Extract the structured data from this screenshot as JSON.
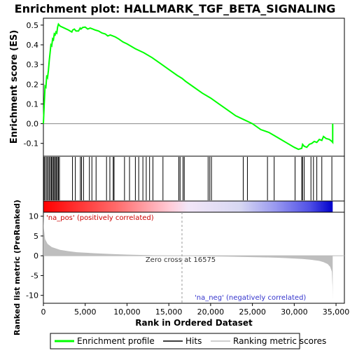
{
  "chart_data": {
    "type": "line",
    "title": "Enrichment plot: HALLMARK_TGF_BETA_SIGNALING",
    "top_panel": {
      "ylabel": "Enrichment score (ES)",
      "ylim": [
        -0.165,
        0.535
      ],
      "yticks": [
        -0.1,
        0.0,
        0.1,
        0.2,
        0.3,
        0.4,
        0.5
      ],
      "ytick_labels": [
        "-0.1",
        "0.0",
        "0.1",
        "0.2",
        "0.3",
        "0.4",
        "0.5"
      ],
      "series": [
        {
          "name": "Enrichment profile",
          "color": "#00ff00",
          "x": [
            0,
            100,
            200,
            300,
            400,
            500,
            600,
            700,
            800,
            900,
            1000,
            1100,
            1200,
            1300,
            1400,
            1500,
            1600,
            1700,
            1800,
            1900,
            2000,
            2500,
            3000,
            3400,
            3500,
            3700,
            3900,
            4200,
            4400,
            4500,
            4700,
            5000,
            5300,
            5600,
            5900,
            6200,
            6600,
            7000,
            7400,
            7700,
            8000,
            8300,
            8600,
            9000,
            9500,
            10000,
            11000,
            12000,
            13000,
            14000,
            15000,
            16000,
            16575,
            17000,
            18000,
            19000,
            20000,
            21000,
            22000,
            23000,
            24000,
            24500,
            25000,
            26000,
            27000,
            28000,
            29000,
            30000,
            30500,
            30900,
            31000,
            31200,
            31500,
            31800,
            32100,
            32400,
            32700,
            33000,
            33300,
            33500,
            33800,
            34200,
            34500,
            34600,
            34600
          ],
          "y": [
            0.0,
            0.1,
            0.19,
            0.185,
            0.245,
            0.235,
            0.27,
            0.32,
            0.36,
            0.4,
            0.395,
            0.43,
            0.425,
            0.455,
            0.45,
            0.465,
            0.46,
            0.49,
            0.505,
            0.5,
            0.495,
            0.485,
            0.475,
            0.465,
            0.475,
            0.48,
            0.47,
            0.47,
            0.485,
            0.48,
            0.488,
            0.49,
            0.48,
            0.485,
            0.48,
            0.475,
            0.47,
            0.46,
            0.455,
            0.445,
            0.45,
            0.445,
            0.44,
            0.43,
            0.415,
            0.405,
            0.38,
            0.36,
            0.335,
            0.305,
            0.275,
            0.245,
            0.23,
            0.215,
            0.185,
            0.155,
            0.13,
            0.1,
            0.07,
            0.04,
            0.02,
            0.01,
            0.0,
            -0.03,
            -0.045,
            -0.07,
            -0.095,
            -0.12,
            -0.13,
            -0.125,
            -0.105,
            -0.115,
            -0.12,
            -0.105,
            -0.1,
            -0.09,
            -0.095,
            -0.08,
            -0.085,
            -0.065,
            -0.075,
            -0.08,
            -0.09,
            -0.095,
            0.0
          ]
        }
      ]
    },
    "hits": {
      "name": "Hits",
      "x": [
        30,
        120,
        280,
        420,
        560,
        700,
        840,
        960,
        1080,
        1200,
        1320,
        1440,
        1560,
        1680,
        1800,
        1920,
        3480,
        3820,
        4420,
        4560,
        4800,
        5500,
        5800,
        6300,
        7550,
        7950,
        8350,
        8450,
        9700,
        10300,
        11000,
        11400,
        11900,
        12300,
        12700,
        13100,
        14300,
        16200,
        16350,
        16700,
        16850,
        19700,
        19900,
        20100,
        23900,
        24400,
        26800,
        27600,
        30100,
        30900,
        31000,
        31200,
        32000,
        32300,
        32700,
        33300,
        34500
      ]
    },
    "heatmap": {
      "pos_color": "#ff0000",
      "neg_color": "#0000ff"
    },
    "bottom_panel": {
      "ylabel": "Ranked list metric (PreRanked)",
      "ylim": [
        -12,
        11
      ],
      "yticks": [
        -10,
        -5,
        0,
        5,
        10
      ],
      "ytick_labels": [
        "-10",
        "-5",
        "0",
        "5",
        "10"
      ],
      "fill_color": "#bebebe",
      "x": [
        0,
        50,
        200,
        500,
        1000,
        2000,
        3000,
        4000,
        6000,
        8000,
        10000,
        12000,
        14000,
        16575,
        18000,
        20000,
        22000,
        24000,
        26000,
        28000,
        29000,
        30000,
        31000,
        32000,
        33000,
        33500,
        34000,
        34300,
        34500,
        34580,
        34600
      ],
      "values": [
        10.8,
        7.0,
        4.2,
        3.0,
        2.2,
        1.5,
        1.15,
        0.9,
        0.65,
        0.45,
        0.3,
        0.18,
        0.08,
        0.0,
        -0.06,
        -0.14,
        -0.22,
        -0.3,
        -0.38,
        -0.5,
        -0.58,
        -0.7,
        -0.82,
        -1.0,
        -1.3,
        -1.6,
        -2.1,
        -2.8,
        -4.0,
        -8.0,
        -11.0
      ],
      "annotations": {
        "pos_label": "'na_pos' (positively correlated)",
        "neg_label": "'na_neg' (negatively correlated)",
        "zero_cross": "Zero cross at 16575",
        "zero_cross_x": 16575
      }
    },
    "xaxis": {
      "xlabel": "Rank in Ordered Dataset",
      "xlim": [
        0,
        36000
      ],
      "xticks": [
        0,
        5000,
        10000,
        15000,
        20000,
        25000,
        30000,
        35000
      ],
      "xtick_labels": [
        "0",
        "5,000",
        "10,000",
        "15,000",
        "20,000",
        "25,000",
        "30,000",
        "35,000"
      ],
      "n_genes": 34600
    },
    "legend": {
      "placement": "bottom",
      "entries": [
        {
          "label": "Enrichment profile",
          "color": "#00ff00"
        },
        {
          "label": "Hits",
          "color": "#000000"
        },
        {
          "label": "Ranking metric scores",
          "color": "#bebebe"
        }
      ]
    },
    "grid": false
  }
}
